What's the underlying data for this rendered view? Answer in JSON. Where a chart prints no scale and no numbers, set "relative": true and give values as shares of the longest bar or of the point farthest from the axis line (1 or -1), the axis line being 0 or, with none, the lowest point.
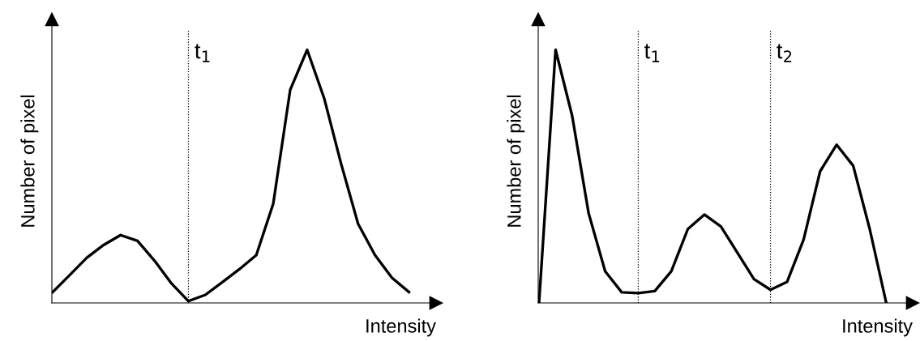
{
  "chart_data": [
    {
      "type": "line",
      "relative": true,
      "xlabel": "Intensity",
      "ylabel": "Number of pixel",
      "categories": [
        null,
        null,
        null,
        null,
        null,
        null,
        null,
        null,
        null,
        null,
        null,
        null,
        null,
        null,
        null,
        null,
        null,
        null,
        null,
        null,
        null,
        null
      ],
      "series": [
        {
          "color": "#000000",
          "values": [
            0.043,
            0.11,
            0.178,
            0.229,
            0.268,
            0.245,
            0.167,
            0.077,
            0.007,
            0.032,
            0.082,
            0.133,
            0.189,
            0.392,
            0.842,
            1.0,
            0.809,
            0.55,
            0.313,
            0.189,
            0.099,
            0.043
          ]
        }
      ],
      "annotations": [
        "t$_{1}$"
      ],
      "grid": false,
      "legend": false,
      "marker": "none",
      "line_style": "solid",
      "tick_labels": false
    },
    {
      "type": "line",
      "relative": true,
      "xlabel": "Intensity",
      "ylabel": "Number of pixel",
      "categories": [
        null,
        null,
        null,
        null,
        null,
        null,
        null,
        null,
        null,
        null,
        null,
        null,
        null,
        null,
        null,
        null,
        null,
        null,
        null,
        null,
        null,
        null
      ],
      "series": [
        {
          "color": "#000000",
          "values": [
            0,
            1.0,
            0.74,
            0.354,
            0.125,
            0.042,
            0.039,
            0.047,
            0.125,
            0.292,
            0.349,
            0.302,
            0.198,
            0.094,
            0.052,
            0.083,
            0.25,
            0.52,
            0.625,
            0.542,
            0.292,
            0
          ]
        }
      ],
      "annotations": [
        "t$_{1}$",
        "t$_{2}$"
      ],
      "grid": false,
      "legend": false,
      "marker": "none",
      "line_style": "solid",
      "tick_labels": false
    }
  ]
}
